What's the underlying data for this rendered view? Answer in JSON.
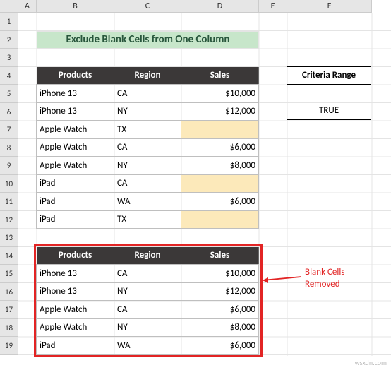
{
  "columns": {
    "rowHeaderW": 26,
    "A": 26,
    "B": 110,
    "C": 95,
    "D": 110,
    "E": 40,
    "F": 120,
    "G": 27
  },
  "colLabels": [
    "A",
    "B",
    "C",
    "D",
    "E",
    "F"
  ],
  "rowLabels": [
    "1",
    "2",
    "3",
    "4",
    "5",
    "6",
    "7",
    "8",
    "9",
    "10",
    "11",
    "12",
    "13",
    "14",
    "15",
    "16",
    "17",
    "18",
    "19"
  ],
  "title": "Exclude Blank Cells from One Column",
  "criteria": {
    "header": "Criteria Range",
    "value": "TRUE"
  },
  "table1": {
    "headers": [
      "Products",
      "Region",
      "Sales"
    ],
    "rows": [
      {
        "p": "iPhone 13",
        "r": "CA",
        "s": "$10,000",
        "blank": false
      },
      {
        "p": "iPhone 13",
        "r": "NY",
        "s": "$12,000",
        "blank": false
      },
      {
        "p": "Apple Watch",
        "r": "TX",
        "s": "",
        "blank": true
      },
      {
        "p": "Apple Watch",
        "r": "CA",
        "s": "$6,000",
        "blank": false
      },
      {
        "p": "Apple Watch",
        "r": "NY",
        "s": "$8,000",
        "blank": false
      },
      {
        "p": "iPad",
        "r": "CA",
        "s": "",
        "blank": true
      },
      {
        "p": "iPad",
        "r": "WA",
        "s": "$6,000",
        "blank": false
      },
      {
        "p": "iPad",
        "r": "TX",
        "s": "",
        "blank": true
      }
    ]
  },
  "table2": {
    "headers": [
      "Products",
      "Region",
      "Sales"
    ],
    "rows": [
      {
        "p": "iPhone 13",
        "r": "CA",
        "s": "$10,000"
      },
      {
        "p": "iPhone 13",
        "r": "NY",
        "s": "$12,000"
      },
      {
        "p": "Apple Watch",
        "r": "CA",
        "s": "$6,000"
      },
      {
        "p": "Apple Watch",
        "r": "NY",
        "s": "$8,000"
      },
      {
        "p": "iPad",
        "r": "WA",
        "s": "$6,000"
      }
    ]
  },
  "callout": {
    "line1": "Blank Cells",
    "line2": "Removed"
  },
  "watermark": "wsxdn.com",
  "colors": {
    "banner_bg": "#c7e6ca",
    "banner_fg": "#28563c",
    "header_bg": "#3b3838",
    "header_fg": "#ffffff",
    "blank_bg": "#fce9ba",
    "red": "#e22424",
    "grid": "#e4e4e4",
    "border": "#bfbfbf"
  }
}
